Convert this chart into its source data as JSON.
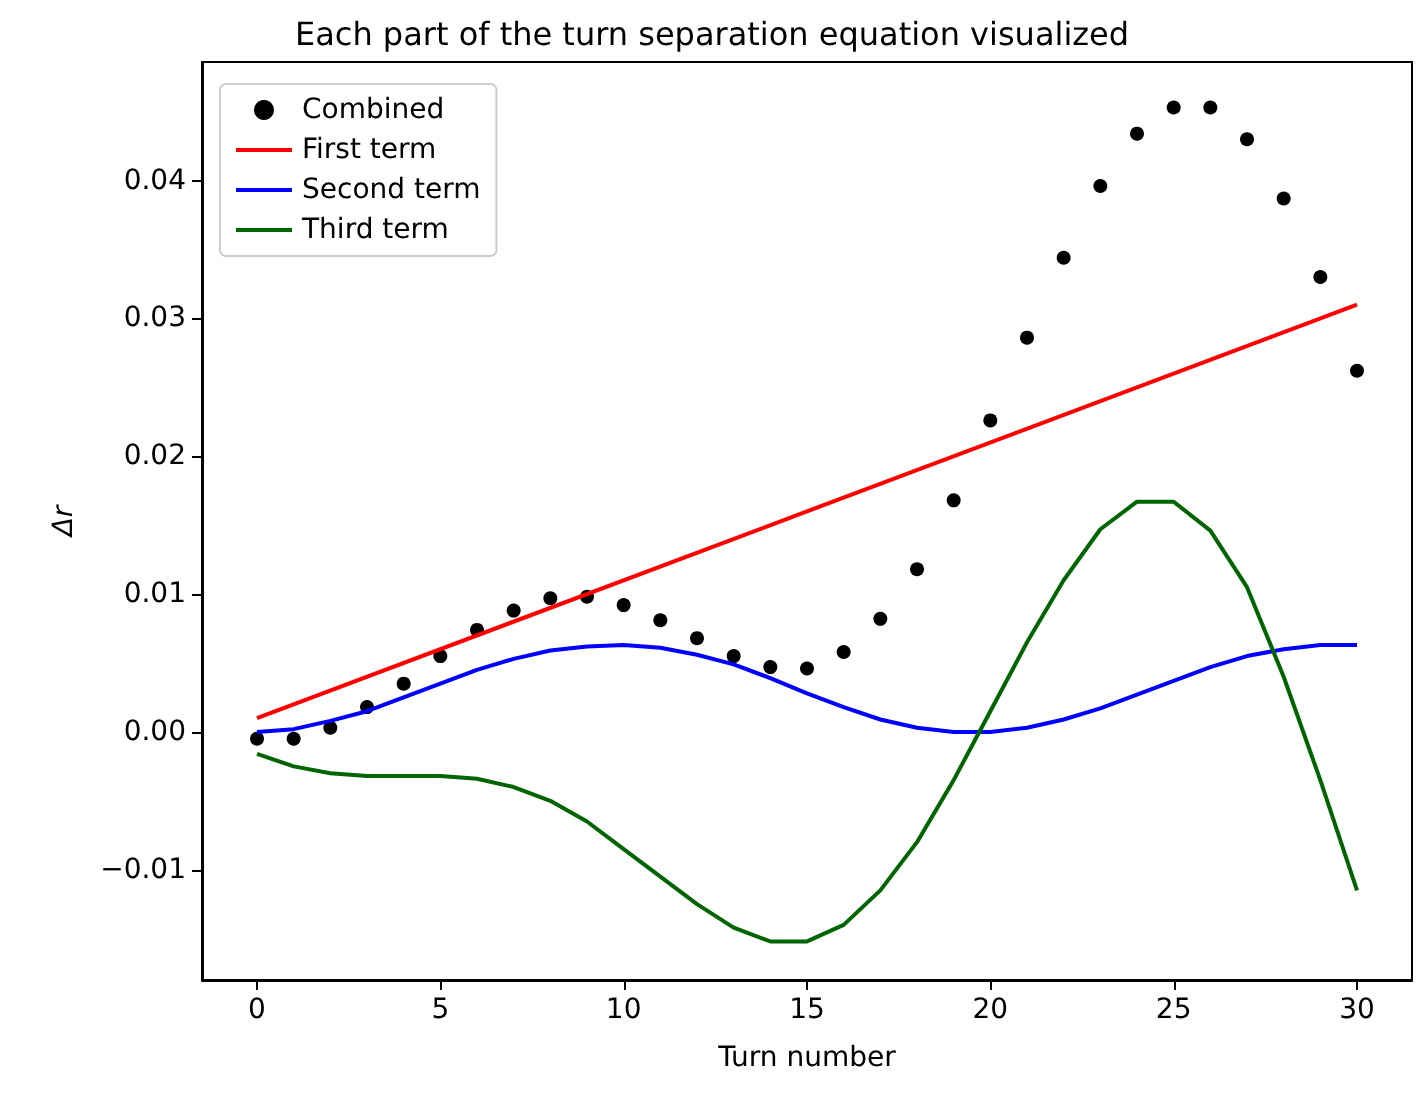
{
  "chart_data": {
    "type": "line",
    "title": "Each part of the turn separation equation visualized",
    "xlabel": "Turn number",
    "ylabel": "Δr",
    "xlim": [
      -1.5,
      31.5
    ],
    "xticks": [
      0,
      5,
      10,
      15,
      20,
      25,
      30
    ],
    "ylim": [
      -0.018,
      0.0486
    ],
    "yticks": [
      {
        "value": -0.01,
        "label": "−0.01"
      },
      {
        "value": 0,
        "label": "0.00"
      },
      {
        "value": 0.01,
        "label": "0.01"
      },
      {
        "value": 0.02,
        "label": "0.02"
      },
      {
        "value": 0.03,
        "label": "0.03"
      },
      {
        "value": 0.04,
        "label": "0.04"
      }
    ],
    "x": [
      0,
      1,
      2,
      3,
      4,
      5,
      6,
      7,
      8,
      9,
      10,
      11,
      12,
      13,
      14,
      15,
      16,
      17,
      18,
      19,
      20,
      21,
      22,
      23,
      24,
      25,
      26,
      27,
      28,
      29,
      30
    ],
    "series": [
      {
        "name": "Combined",
        "type": "scatter",
        "marker": "circle",
        "color": "#000000",
        "values": [
          -0.0005,
          -0.0005,
          0.0003,
          0.0018,
          0.0035,
          0.0055,
          0.0074,
          0.0088,
          0.0097,
          0.0098,
          0.0092,
          0.0081,
          0.0068,
          0.0055,
          0.0047,
          0.0046,
          0.0058,
          0.0082,
          0.0118,
          0.0168,
          0.0226,
          0.0286,
          0.0344,
          0.0396,
          0.0434,
          0.0453,
          0.0453,
          0.043,
          0.0387,
          0.033,
          0.0262
        ]
      },
      {
        "name": "First term",
        "type": "line",
        "color": "#ff0000",
        "x": [
          0,
          30
        ],
        "values": [
          0.001,
          0.031
        ]
      },
      {
        "name": "Second term",
        "type": "line",
        "color": "#0000ff",
        "values": [
          0,
          0.0002,
          0.0008,
          0.0015,
          0.0025,
          0.0035,
          0.0045,
          0.0053,
          0.0059,
          0.0062,
          0.0063,
          0.0061,
          0.0056,
          0.0049,
          0.0039,
          0.0028,
          0.0018,
          0.0009,
          0.0003,
          0,
          0,
          0.0003,
          0.0009,
          0.0017,
          0.0027,
          0.0037,
          0.0047,
          0.0055,
          0.006,
          0.0063,
          0.0063
        ]
      },
      {
        "name": "Third term",
        "type": "line",
        "color": "#006400",
        "values": [
          -0.0016,
          -0.0025,
          -0.003,
          -0.0032,
          -0.0032,
          -0.0032,
          -0.0034,
          -0.004,
          -0.005,
          -0.0065,
          -0.0085,
          -0.0105,
          -0.0125,
          -0.0142,
          -0.0152,
          -0.0152,
          -0.014,
          -0.0115,
          -0.008,
          -0.0035,
          0.0015,
          0.0065,
          0.011,
          0.0147,
          0.0167,
          0.0167,
          0.0146,
          0.0105,
          0.004,
          -0.0035,
          -0.0115
        ]
      }
    ],
    "legend": "top left",
    "grid": false
  }
}
